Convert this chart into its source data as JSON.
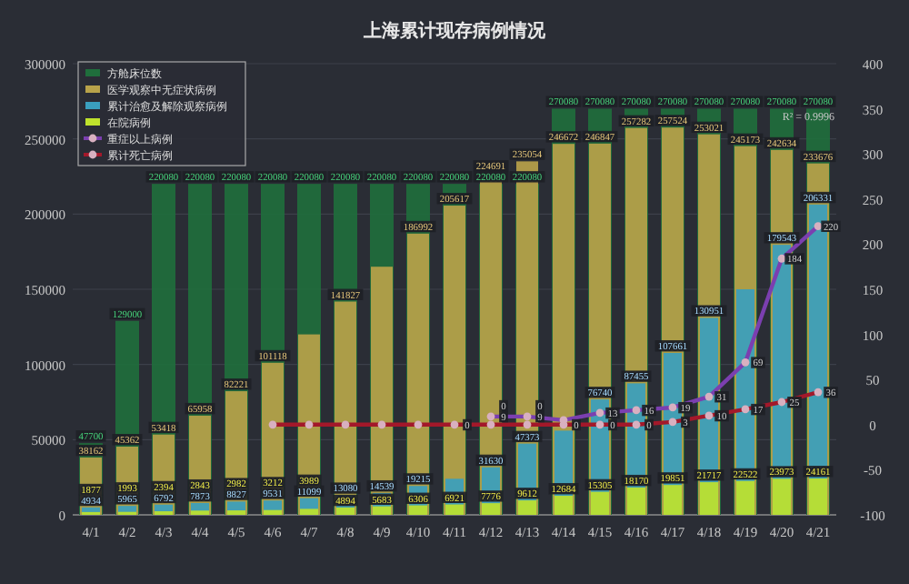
{
  "chart_data": {
    "type": "bar",
    "title": "上海累计现存病例情况",
    "categories": [
      "4/1",
      "4/2",
      "4/3",
      "4/4",
      "4/5",
      "4/6",
      "4/7",
      "4/8",
      "4/9",
      "4/10",
      "4/11",
      "4/12",
      "4/13",
      "4/14",
      "4/15",
      "4/16",
      "4/17",
      "4/18",
      "4/19",
      "4/20",
      "4/21"
    ],
    "series": [
      {
        "name": "方舱床位数",
        "color": "#1f6e3c",
        "values": [
          47700,
          129000,
          220080,
          220080,
          220080,
          220080,
          220080,
          220080,
          220080,
          220080,
          220080,
          220080,
          220080,
          270080,
          270080,
          270080,
          270080,
          270080,
          270080,
          270080,
          270080
        ],
        "value_labels": [
          "47700",
          "129000",
          "220080",
          "220080",
          "220080",
          "220080",
          "220080",
          "220080",
          "220080",
          "220080",
          "220080",
          "220080",
          "220080",
          "270080",
          "270080",
          "270080",
          "270080",
          "270080",
          "270080",
          "270080",
          "270080"
        ]
      },
      {
        "name": "医学观察中无症状病例",
        "color": "#b8a24a",
        "values": [
          38162,
          45362,
          53418,
          65958,
          82221,
          101118,
          120000,
          141827,
          165000,
          186992,
          205617,
          224691,
          235054,
          246672,
          246847,
          257282,
          257524,
          253021,
          245173,
          242634,
          233676
        ],
        "value_labels": [
          "38162",
          "45362",
          "53418",
          "65958",
          "82221",
          "101118",
          null,
          "141827",
          null,
          "186992",
          "205617",
          "224691",
          "235054",
          "246672",
          "246847",
          "257282",
          "257524",
          "253021",
          "245173",
          "242634",
          "233676"
        ]
      },
      {
        "name": "累计治愈及解除观察病例",
        "color": "#3a9fbe",
        "values": [
          4934,
          5965,
          6792,
          7873,
          8827,
          9531,
          11099,
          13080,
          14539,
          19215,
          24000,
          31630,
          47373,
          56000,
          76740,
          87455,
          107661,
          130951,
          150000,
          179543,
          206331
        ],
        "value_labels": [
          "4934",
          "5965",
          "6792",
          "7873",
          "8827",
          "9531",
          "11099",
          "13080",
          "14539",
          "19215",
          null,
          "31630",
          "47373",
          null,
          "76740",
          "87455",
          "107661",
          "130951",
          null,
          "179543",
          "206331"
        ]
      },
      {
        "name": "在院病例",
        "color": "#bfe22c",
        "values": [
          1877,
          1993,
          2394,
          2843,
          2982,
          3212,
          3989,
          4894,
          5683,
          6306,
          6921,
          7776,
          9612,
          12684,
          15305,
          18170,
          19851,
          21717,
          22522,
          23973,
          24161
        ],
        "value_labels": [
          "1877",
          "1993",
          "2394",
          "2843",
          "2982",
          "3212",
          "3989",
          "4894",
          "5683",
          "6306",
          "6921",
          "7776",
          "9612",
          "12684",
          "15305",
          "18170",
          "19851",
          "21717",
          "22522",
          "23973",
          "24161"
        ]
      },
      {
        "name": "重症以上病例",
        "type": "line",
        "axis": "y2",
        "color": "#7b3fb0",
        "values": [
          null,
          null,
          null,
          null,
          null,
          null,
          null,
          null,
          null,
          null,
          null,
          9,
          9,
          5,
          13,
          16,
          19,
          31,
          69,
          184,
          220
        ],
        "value_labels": [
          null,
          null,
          null,
          null,
          null,
          null,
          null,
          null,
          null,
          null,
          null,
          "9",
          "9",
          null,
          "13",
          "16",
          "19",
          "31",
          "69",
          "184",
          "220"
        ]
      },
      {
        "name": "累计死亡病例",
        "type": "line",
        "axis": "y2",
        "color": "#a3182a",
        "values": [
          null,
          null,
          null,
          null,
          null,
          0,
          0,
          0,
          0,
          0,
          0,
          0,
          0,
          0,
          0,
          0,
          3,
          10,
          17,
          25,
          36
        ],
        "value_labels": [
          null,
          null,
          null,
          null,
          null,
          null,
          null,
          null,
          null,
          null,
          "0",
          "0",
          "0",
          "0",
          "0",
          "0",
          "3",
          "10",
          "17",
          "25",
          "36"
        ]
      }
    ],
    "ylim": [
      0,
      300000
    ],
    "yticks": [
      0,
      50000,
      100000,
      150000,
      200000,
      250000,
      300000
    ],
    "y2lim": [
      -100,
      400
    ],
    "y2ticks": [
      -100,
      -50,
      0,
      50,
      100,
      150,
      200,
      250,
      300,
      350,
      400
    ],
    "grid": "y",
    "legend": "top left",
    "marker": "circle",
    "annotations": [
      "R² = 0.9996"
    ]
  }
}
